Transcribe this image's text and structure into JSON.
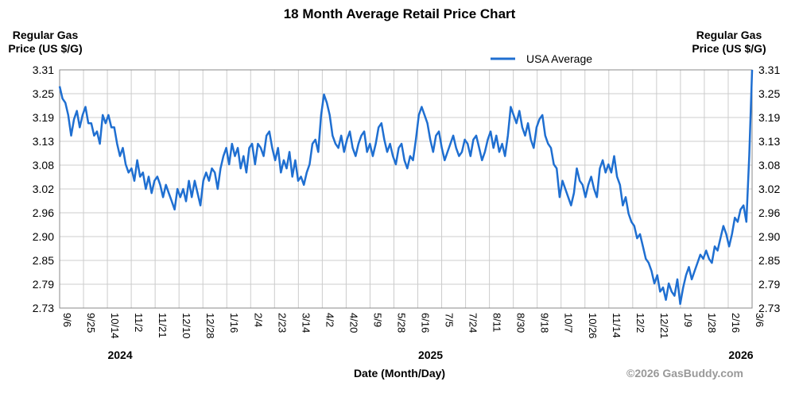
{
  "chart_data": {
    "type": "line",
    "title": "18 Month Average Retail Price Chart",
    "ylabel_left": [
      "Regular Gas",
      "Price (US $/G)"
    ],
    "ylabel_right": [
      "Regular Gas",
      "Price (US $/G)"
    ],
    "xlabel": "Date (Month/Day)",
    "credit": "©2026 GasBuddy.com",
    "legend": {
      "label": "USA Average",
      "placement": "top-center"
    },
    "ylim": [
      2.73,
      3.31
    ],
    "yticks": [
      "3.31",
      "3.25",
      "3.19",
      "3.13",
      "3.08",
      "3.02",
      "2.96",
      "2.90",
      "2.85",
      "2.79",
      "2.73"
    ],
    "grid": true,
    "line_color": "#1f6fd1",
    "grid_color": "#cccccc",
    "xticks": [
      "9/6",
      "9/25",
      "10/14",
      "11/2",
      "11/21",
      "12/10",
      "12/28",
      "1/16",
      "2/4",
      "2/23",
      "3/14",
      "4/2",
      "4/20",
      "5/9",
      "5/28",
      "6/16",
      "7/5",
      "7/24",
      "8/11",
      "8/30",
      "9/18",
      "10/7",
      "10/26",
      "11/14",
      "12/2",
      "12/21",
      "1/9",
      "1/28",
      "2/16",
      "3/6"
    ],
    "years": [
      {
        "label": "2024",
        "after_tick": "10/14"
      },
      {
        "label": "2025",
        "after_tick": "6/16"
      },
      {
        "label": "2026",
        "after_tick": "2/16"
      }
    ],
    "series": [
      {
        "name": "USA Average",
        "values": [
          3.27,
          3.24,
          3.23,
          3.2,
          3.15,
          3.19,
          3.21,
          3.17,
          3.2,
          3.22,
          3.18,
          3.18,
          3.15,
          3.16,
          3.13,
          3.2,
          3.18,
          3.2,
          3.17,
          3.17,
          3.13,
          3.1,
          3.12,
          3.08,
          3.06,
          3.07,
          3.04,
          3.09,
          3.05,
          3.06,
          3.02,
          3.05,
          3.01,
          3.04,
          3.05,
          3.03,
          3.0,
          3.03,
          3.01,
          2.99,
          2.97,
          3.02,
          3.0,
          3.02,
          2.99,
          3.04,
          3.0,
          3.04,
          3.01,
          2.98,
          3.04,
          3.06,
          3.04,
          3.07,
          3.06,
          3.02,
          3.07,
          3.1,
          3.12,
          3.08,
          3.13,
          3.1,
          3.12,
          3.07,
          3.1,
          3.06,
          3.12,
          3.13,
          3.08,
          3.13,
          3.12,
          3.1,
          3.15,
          3.16,
          3.12,
          3.09,
          3.12,
          3.06,
          3.09,
          3.07,
          3.11,
          3.05,
          3.09,
          3.04,
          3.05,
          3.03,
          3.06,
          3.08,
          3.13,
          3.14,
          3.11,
          3.2,
          3.25,
          3.23,
          3.2,
          3.15,
          3.13,
          3.12,
          3.15,
          3.11,
          3.14,
          3.16,
          3.12,
          3.1,
          3.13,
          3.15,
          3.16,
          3.11,
          3.13,
          3.1,
          3.13,
          3.17,
          3.18,
          3.14,
          3.11,
          3.13,
          3.1,
          3.08,
          3.12,
          3.13,
          3.09,
          3.07,
          3.1,
          3.09,
          3.14,
          3.2,
          3.22,
          3.2,
          3.18,
          3.14,
          3.11,
          3.15,
          3.16,
          3.12,
          3.09,
          3.11,
          3.13,
          3.15,
          3.12,
          3.1,
          3.11,
          3.14,
          3.13,
          3.1,
          3.14,
          3.15,
          3.12,
          3.09,
          3.11,
          3.14,
          3.16,
          3.12,
          3.15,
          3.11,
          3.13,
          3.1,
          3.15,
          3.22,
          3.2,
          3.18,
          3.21,
          3.17,
          3.15,
          3.18,
          3.14,
          3.12,
          3.17,
          3.19,
          3.2,
          3.15,
          3.13,
          3.12,
          3.08,
          3.07,
          3.0,
          3.04,
          3.02,
          3.0,
          2.98,
          3.01,
          3.07,
          3.04,
          3.03,
          3.0,
          3.03,
          3.05,
          3.02,
          3.0,
          3.07,
          3.09,
          3.06,
          3.08,
          3.06,
          3.1,
          3.05,
          3.03,
          2.98,
          3.0,
          2.96,
          2.94,
          2.93,
          2.9,
          2.91,
          2.88,
          2.85,
          2.84,
          2.82,
          2.79,
          2.81,
          2.77,
          2.78,
          2.75,
          2.79,
          2.77,
          2.76,
          2.8,
          2.74,
          2.78,
          2.81,
          2.83,
          2.8,
          2.82,
          2.84,
          2.86,
          2.85,
          2.87,
          2.85,
          2.84,
          2.88,
          2.87,
          2.9,
          2.93,
          2.91,
          2.88,
          2.91,
          2.95,
          2.94,
          2.97,
          2.98,
          2.94,
          3.1,
          3.31
        ]
      }
    ]
  }
}
